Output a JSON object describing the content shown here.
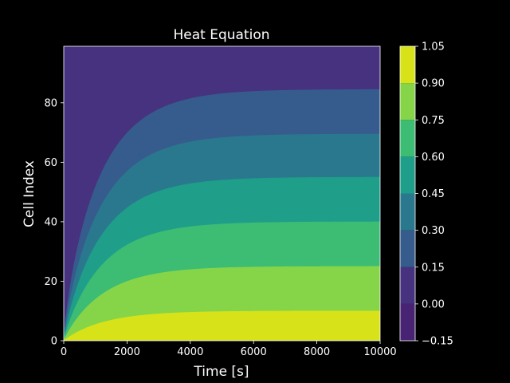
{
  "chart_data": {
    "type": "heatmap",
    "subtype": "filled-contour",
    "title": "Heat Equation",
    "xlabel": "Time [s]",
    "ylabel": "Cell Index",
    "xlim": [
      0,
      10000
    ],
    "ylim": [
      0,
      99
    ],
    "x_ticks": [
      0,
      2000,
      4000,
      6000,
      8000,
      10000
    ],
    "x_tick_labels": [
      "0",
      "2000",
      "4000",
      "6000",
      "8000",
      "10000"
    ],
    "y_ticks": [
      0,
      20,
      40,
      60,
      80
    ],
    "y_tick_labels": [
      "0",
      "20",
      "40",
      "60",
      "80"
    ],
    "colorbar": {
      "levels": [
        -0.15,
        0.0,
        0.15,
        0.3,
        0.45,
        0.6,
        0.75,
        0.9,
        1.05
      ],
      "tick_labels": [
        "−0.15",
        "0.00",
        "0.15",
        "0.30",
        "0.45",
        "0.60",
        "0.75",
        "0.90",
        "1.05"
      ],
      "colors": [
        "#482374",
        "#46327e",
        "#365c8d",
        "#2a788e",
        "#1f9e89",
        "#3dbc74",
        "#86d549",
        "#d8e219"
      ]
    },
    "contour_boundaries": [
      {
        "level": 0.9,
        "steady_state_y": 10
      },
      {
        "level": 0.75,
        "steady_state_y": 25
      },
      {
        "level": 0.6,
        "steady_state_y": 40
      },
      {
        "level": 0.45,
        "steady_state_y": 55
      },
      {
        "level": 0.3,
        "steady_state_y": 69.5
      },
      {
        "level": 0.15,
        "steady_state_y": 84.5
      }
    ],
    "time_constant_s": 1300,
    "background_color": "#000000",
    "text_color": "#ffffff"
  }
}
